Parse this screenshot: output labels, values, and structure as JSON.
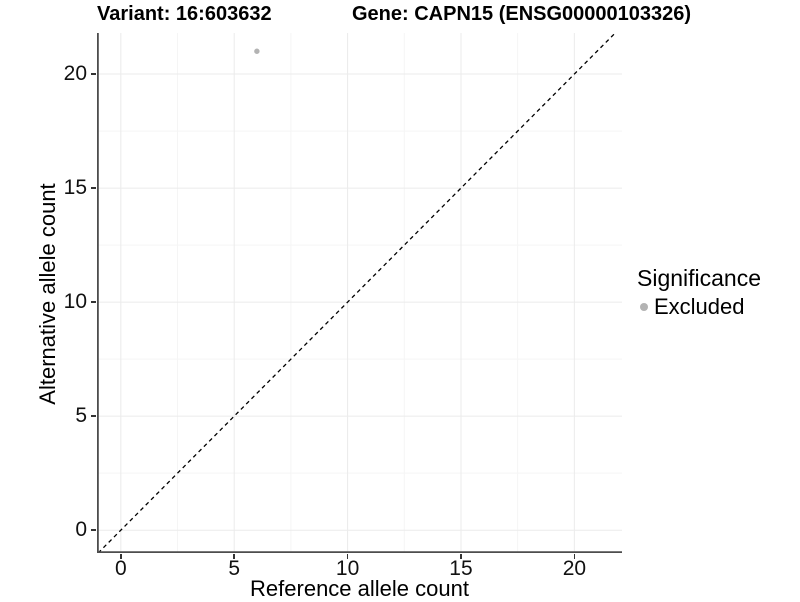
{
  "titles": {
    "variant": "Variant: 16:603632",
    "gene": "Gene: CAPN15 (ENSG00000103326)"
  },
  "axes": {
    "x_label": "Reference allele count",
    "y_label": "Alternative allele count"
  },
  "legend": {
    "title": "Significance",
    "entries": [
      {
        "label": "Excluded",
        "color": "#b3b3b3"
      }
    ]
  },
  "chart_data": {
    "type": "scatter",
    "title": "Variant: 16:603632   Gene: CAPN15 (ENSG00000103326)",
    "xlabel": "Reference allele count",
    "ylabel": "Alternative allele count",
    "xlim": [
      -1.05,
      22.1
    ],
    "ylim": [
      -1.0,
      21.8
    ],
    "x_ticks": [
      0,
      5,
      10,
      15,
      20
    ],
    "y_ticks": [
      0,
      5,
      10,
      15,
      20
    ],
    "minor_ticks": [
      2.5,
      7.5,
      12.5,
      17.5
    ],
    "grid": true,
    "legend_position": "right",
    "reference_line": {
      "style": "dashed",
      "equation": "y = x",
      "color": "#000000"
    },
    "series": [
      {
        "name": "Excluded",
        "color": "#b3b3b3",
        "points": [
          [
            6,
            21
          ]
        ]
      }
    ]
  },
  "colors": {
    "background": "#ffffff",
    "axis_line": "#4d4d4d",
    "tick_mark": "#333333",
    "grid_major": "#ebebeb",
    "grid_minor": "#f5f5f5",
    "point": "#b3b3b3",
    "text": "#000000"
  }
}
